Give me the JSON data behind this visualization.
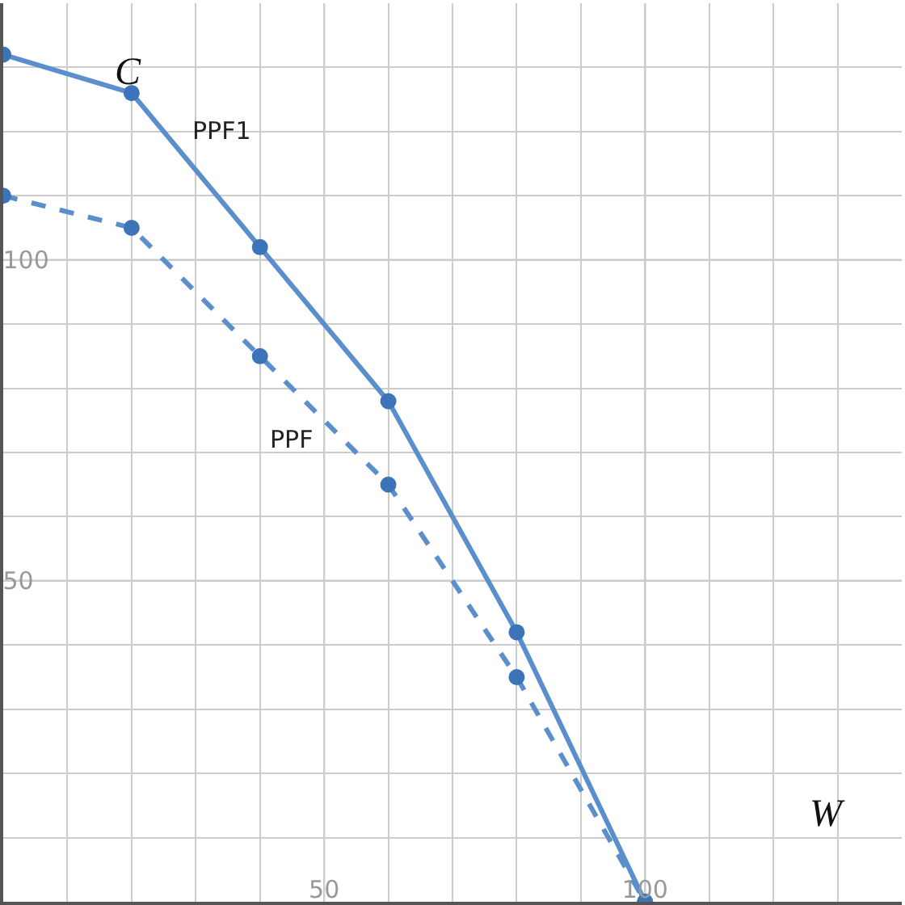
{
  "chart_data": {
    "type": "line",
    "xlabel": "W",
    "ylabel": "C",
    "x": [
      0,
      20,
      40,
      60,
      80,
      100
    ],
    "series": [
      {
        "name": "PPF1",
        "color": "#5b8fcc",
        "values": [
          132,
          126,
          102,
          78,
          42,
          0
        ],
        "line_style": "solid"
      },
      {
        "name": "PPF",
        "color": "#5b8fcc",
        "values": [
          110,
          105,
          85,
          65,
          35,
          0
        ],
        "line_style": "dashed"
      }
    ],
    "xlim": [
      0,
      140
    ],
    "ylim": [
      0,
      140
    ],
    "xticks": [
      {
        "value": 10,
        "label": null
      },
      {
        "value": 20,
        "label": null
      },
      {
        "value": 30,
        "label": null
      },
      {
        "value": 40,
        "label": null
      },
      50,
      {
        "value": 60,
        "label": null
      },
      {
        "value": 70,
        "label": null
      },
      {
        "value": 80,
        "label": null
      },
      {
        "value": 90,
        "label": null
      },
      100,
      {
        "value": 110,
        "label": null
      },
      {
        "value": 120,
        "label": null
      },
      {
        "value": 130,
        "label": null
      }
    ],
    "yticks": [
      {
        "value": 10,
        "label": null
      },
      {
        "value": 20,
        "label": null
      },
      {
        "value": 30,
        "label": null
      },
      {
        "value": 40,
        "label": null
      },
      50,
      {
        "value": 60,
        "label": null
      },
      {
        "value": 70,
        "label": null
      },
      {
        "value": 80,
        "label": null
      },
      {
        "value": 90,
        "label": null
      },
      100,
      {
        "value": 110,
        "label": null
      },
      {
        "value": 120,
        "label": null
      },
      {
        "value": 130,
        "label": null
      }
    ],
    "grid": true,
    "marker": "circle",
    "legend": false
  }
}
